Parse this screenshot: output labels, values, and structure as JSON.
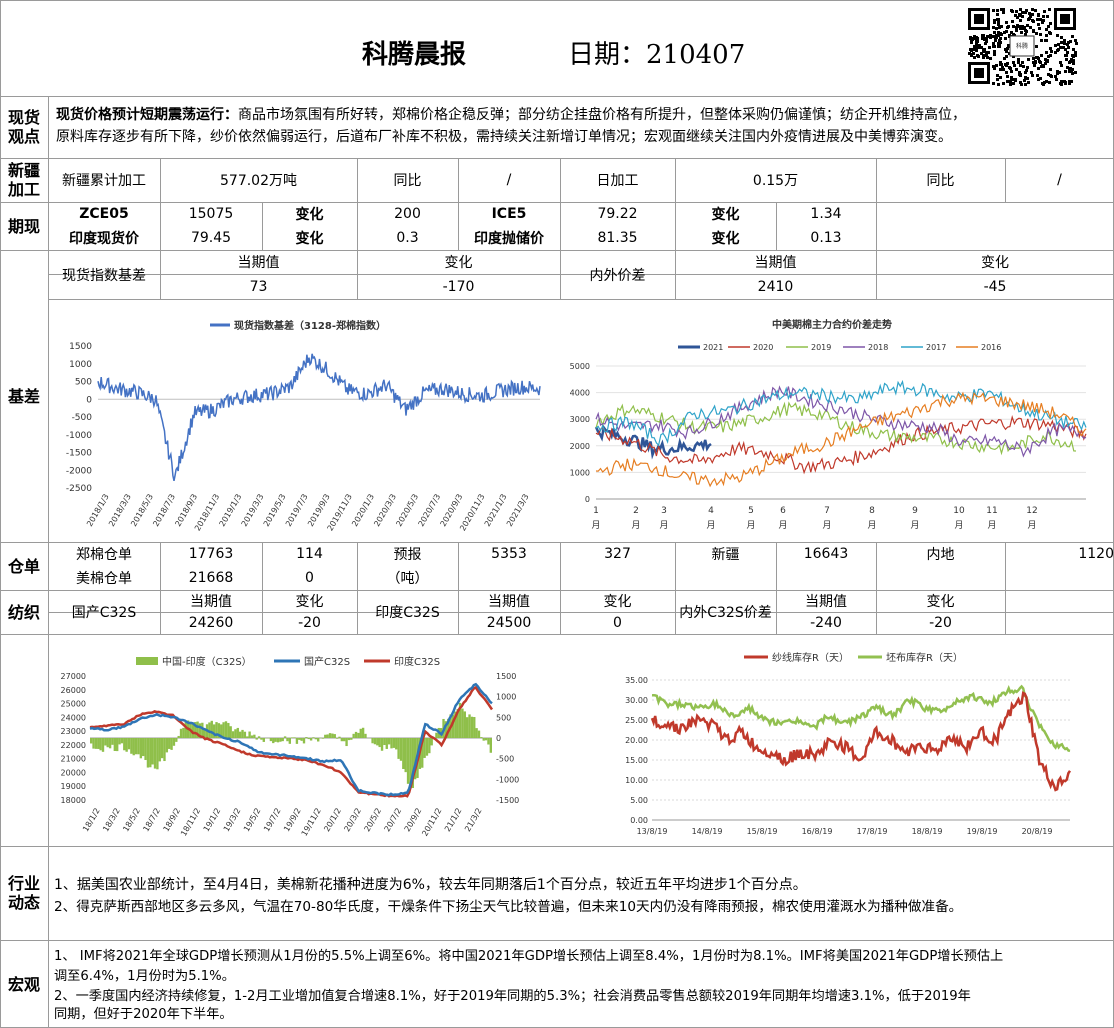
{
  "header": {
    "title": "科腾晨报",
    "date_label": "日期：210407"
  },
  "spot": {
    "label": "现货\n观点",
    "heading": "现货价格预计短期震荡运行：",
    "text1": "商品市场氛围有所好转，郑棉价格企稳反弹；部分纺企挂盘价格有所提升，但整体采购仍偏谨慎；纺企开机维持高位，",
    "text2": "原料库存逐步有所下降，纱价依然偏弱运行，后道布厂补库不积极，需持续关注新增订单情况；宏观面继续关注国内外疫情进展及中美博弈演变。"
  },
  "xinjiang": {
    "label": "新疆\n加工",
    "cells": [
      "新疆累计加工",
      "577.02万吨",
      "同比",
      "/",
      "日加工",
      "0.15万",
      "同比",
      "/"
    ]
  },
  "futures": {
    "label": "期现",
    "row1": [
      "ZCE05",
      "15075",
      "变化",
      "200",
      "ICE5",
      "79.22",
      "变化",
      "1.34"
    ],
    "row2": [
      "印度现货价",
      "79.45",
      "变化",
      "0.3",
      "印度抛储价",
      "81.35",
      "变化",
      "0.13"
    ]
  },
  "basis": {
    "label": "基差",
    "row1": [
      "现货指数基差",
      "当期值",
      "变化",
      "内外价差",
      "当期值",
      "变化"
    ],
    "row2": [
      "73",
      "-170",
      "2410",
      "-45"
    ]
  },
  "warehouse": {
    "label": "仓单",
    "row1": [
      "郑棉仓单",
      "17763",
      "114",
      "预报",
      "5353",
      "327",
      "新疆",
      "16643",
      "内地",
      "1120"
    ],
    "row2": [
      "美棉仓单",
      "21668",
      "0",
      "（吨）"
    ]
  },
  "spinning": {
    "label": "纺织",
    "row1": [
      "国产C32S",
      "当期值",
      "变化",
      "印度C32S",
      "当期值",
      "变化",
      "内外C32S价差",
      "当期值",
      "变化"
    ],
    "row2": [
      "24260",
      "-20",
      "24500",
      "0",
      "-240",
      "-20"
    ]
  },
  "industry": {
    "label": "行业\n动态",
    "line1": "1、据美国农业部统计，至4月4日，美棉新花播种进度为6%，较去年同期落后1个百分点，较近五年平均进步1个百分点。",
    "line2": "2、得克萨斯西部地区多云多风，气温在70-80华氏度，干燥条件下扬尘天气比较普遍，但未来10天内仍没有降雨预报，棉农使用灌溉水为播种做准备。"
  },
  "macro": {
    "label": "宏观",
    "line1": "1、 IMF将2021年全球GDP增长预测从1月份的5.5%上调至6%。将中国2021年GDP增长预估上调至8.4%，1月份时为8.1%。IMF将美国2021年GDP增长预估上",
    "line2": "调至6.4%，1月份时为5.1%。",
    "line3": "2、一季度国内经济持续修复，1-2月工业增加值复合增速8.1%，好于2019年同期的5.3%；社会消费品零售总额较2019年同期年均增速3.1%，低于2019年",
    "line4": "同期，但好于2020年下半年。"
  },
  "chart_data": [
    {
      "type": "line",
      "title": "现货指数基差（3128-郑棉指数）",
      "series": [
        {
          "name": "现货指数基差（3128-郑棉指数）",
          "color": "#4472c4"
        }
      ],
      "categories": [
        "2018/1/3",
        "2018/3/3",
        "2018/5/3",
        "2018/7/3",
        "2018/9/3",
        "2018/11/3",
        "2019/1/3",
        "2019/3/3",
        "2019/5/3",
        "2019/7/3",
        "2019/9/3",
        "2019/11/3",
        "2020/1/3",
        "2020/3/3",
        "2020/5/3",
        "2020/7/3",
        "2020/9/3",
        "2020/11/3",
        "2021/1/3",
        "2021/3/3"
      ],
      "values": [
        600,
        200,
        350,
        -2200,
        -500,
        50,
        0,
        150,
        200,
        350,
        800,
        200,
        150,
        250,
        300,
        -250,
        100,
        150,
        200,
        200
      ],
      "ylim": [
        -2500,
        1500
      ],
      "yticks": [
        "1500",
        "1000",
        "500",
        "0",
        "-500",
        "-1000",
        "-1500",
        "-2000",
        "-2500"
      ]
    },
    {
      "type": "line",
      "title": "中美期棉主力合约价差走势",
      "series": [
        {
          "name": "2021",
          "color": "#2f5597"
        },
        {
          "name": "2020",
          "color": "#c0392b"
        },
        {
          "name": "2019",
          "color": "#8fbf4a"
        },
        {
          "name": "2018",
          "color": "#7e57a8"
        },
        {
          "name": "2017",
          "color": "#2fa3c9"
        },
        {
          "name": "2016",
          "color": "#e67e22"
        }
      ],
      "xticks": [
        "1\n月",
        "2\n月",
        "3\n月",
        "4\n月",
        "5\n月",
        "6\n月",
        "7\n月",
        "8\n月",
        "9\n月",
        "10\n月",
        "11\n月",
        "12\n月"
      ],
      "ylim": [
        0,
        5000
      ],
      "yticks": [
        "5000",
        "4000",
        "3000",
        "2000",
        "1000",
        "0"
      ]
    },
    {
      "type": "line",
      "title": "",
      "series": [
        {
          "name": "中国-印度（C32S）",
          "color": "#8fbf4a"
        },
        {
          "name": "国产C32S",
          "color": "#2e75b6"
        },
        {
          "name": "印度C32S",
          "color": "#c0392b"
        }
      ],
      "categories": [
        "18/1/2",
        "18/3/2",
        "18/5/2",
        "18/7/2",
        "18/9/2",
        "18/11/2",
        "19/1/2",
        "19/3/2",
        "19/5/2",
        "19/7/2",
        "19/9/2",
        "19/11/2",
        "20/1/2",
        "20/3/2",
        "20/5/2",
        "20/7/2",
        "20/9/2",
        "20/11/2",
        "21/1/2",
        "21/3/2"
      ],
      "ylim_left": [
        18000,
        27000
      ],
      "ylim_right": [
        -1500,
        1500
      ],
      "yticks_left": [
        "27000",
        "26000",
        "25000",
        "24000",
        "23000",
        "22000",
        "21000",
        "20000",
        "19000",
        "18000"
      ],
      "yticks_right": [
        "1500",
        "1000",
        "500",
        "0",
        "-500",
        "-1000",
        "-1500"
      ]
    },
    {
      "type": "line",
      "title": "",
      "series": [
        {
          "name": "纱线库存R（天）",
          "color": "#c0392b"
        },
        {
          "name": "坯布库存R（天）",
          "color": "#92c050"
        }
      ],
      "categories": [
        "13/8/19",
        "14/8/19",
        "15/8/19",
        "16/8/19",
        "17/8/19",
        "18/8/19",
        "19/8/19",
        "20/8/19"
      ],
      "ylim": [
        0,
        35
      ],
      "yticks": [
        "35.00",
        "30.00",
        "25.00",
        "20.00",
        "15.00",
        "10.00",
        "5.00",
        "0.00"
      ]
    }
  ]
}
